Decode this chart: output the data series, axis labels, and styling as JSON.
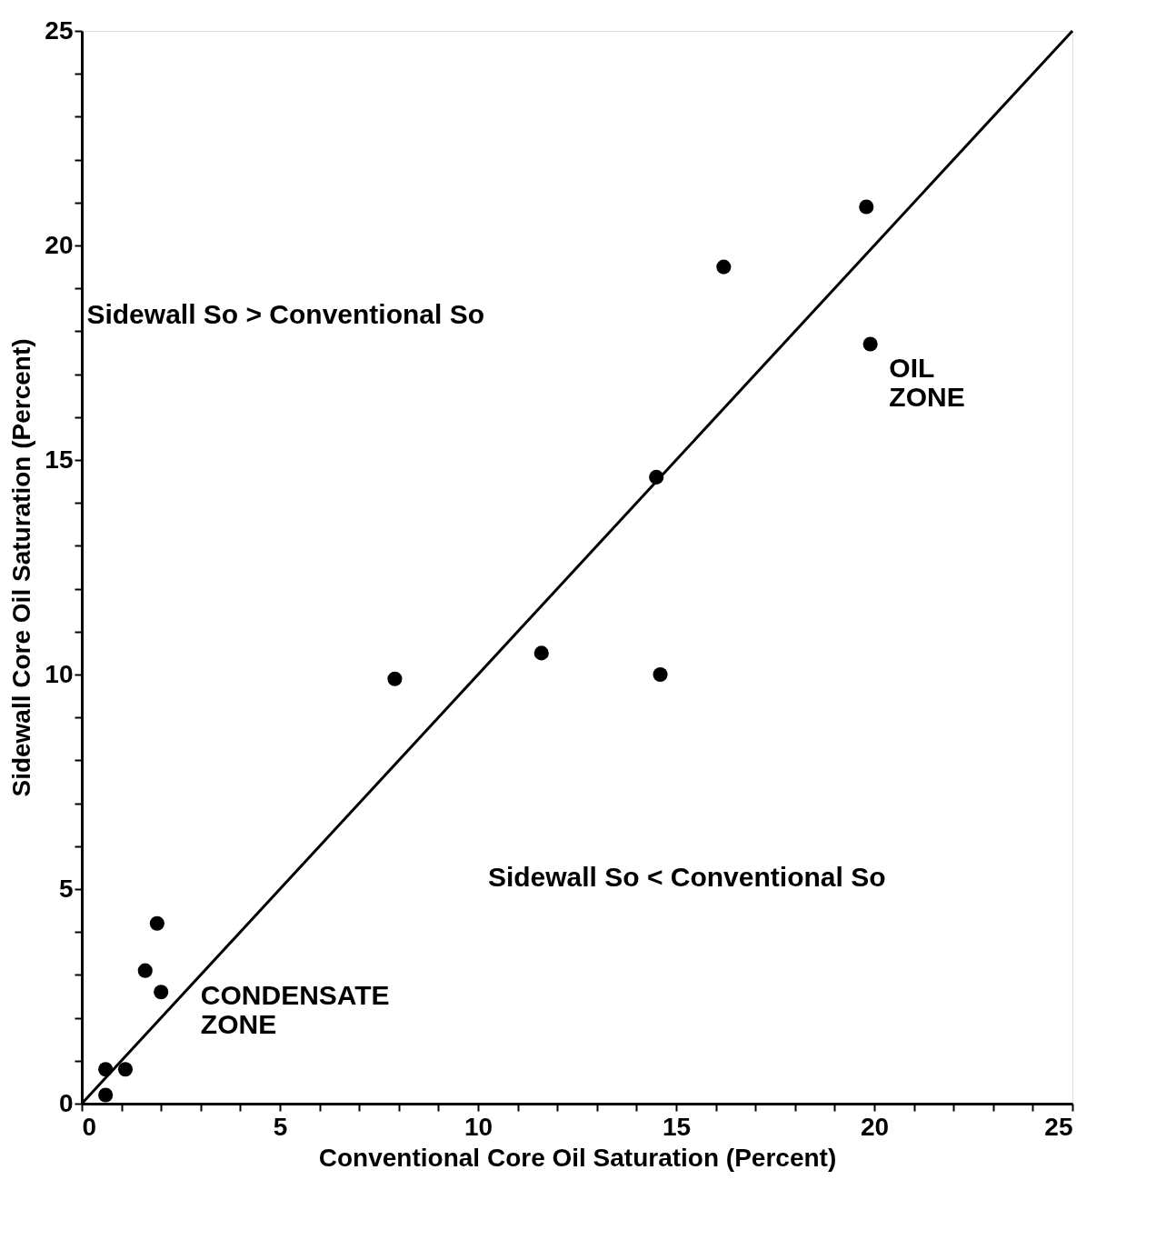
{
  "chart_data": {
    "type": "scatter",
    "xlabel": "Conventional Core Oil Saturation (Percent)",
    "ylabel": "Sidewall Core Oil Saturation (Percent)",
    "xlim": [
      0,
      25
    ],
    "ylim": [
      0,
      25
    ],
    "xticks": [
      0,
      {
        "value": 1,
        "label": null
      },
      {
        "value": 2,
        "label": null
      },
      {
        "value": 3,
        "label": null
      },
      {
        "value": 4,
        "label": null
      },
      5,
      {
        "value": 6,
        "label": null
      },
      {
        "value": 7,
        "label": null
      },
      {
        "value": 8,
        "label": null
      },
      {
        "value": 9,
        "label": null
      },
      10,
      {
        "value": 11,
        "label": null
      },
      {
        "value": 12,
        "label": null
      },
      {
        "value": 13,
        "label": null
      },
      {
        "value": 14,
        "label": null
      },
      15,
      {
        "value": 16,
        "label": null
      },
      {
        "value": 17,
        "label": null
      },
      {
        "value": 18,
        "label": null
      },
      {
        "value": 19,
        "label": null
      },
      20,
      {
        "value": 21,
        "label": null
      },
      {
        "value": 22,
        "label": null
      },
      {
        "value": 23,
        "label": null
      },
      {
        "value": 24,
        "label": null
      },
      25
    ],
    "yticks": [
      0,
      {
        "value": 1,
        "label": null
      },
      {
        "value": 2,
        "label": null
      },
      {
        "value": 3,
        "label": null
      },
      {
        "value": 4,
        "label": null
      },
      5,
      {
        "value": 6,
        "label": null
      },
      {
        "value": 7,
        "label": null
      },
      {
        "value": 8,
        "label": null
      },
      {
        "value": 9,
        "label": null
      },
      10,
      {
        "value": 11,
        "label": null
      },
      {
        "value": 12,
        "label": null
      },
      {
        "value": 13,
        "label": null
      },
      {
        "value": 14,
        "label": null
      },
      15,
      {
        "value": 16,
        "label": null
      },
      {
        "value": 17,
        "label": null
      },
      {
        "value": 18,
        "label": null
      },
      {
        "value": 19,
        "label": null
      },
      20,
      {
        "value": 21,
        "label": null
      },
      {
        "value": 22,
        "label": null
      },
      {
        "value": 23,
        "label": null
      },
      {
        "value": 24,
        "label": null
      },
      25
    ],
    "marker": "circle",
    "series": [
      {
        "type": "line",
        "marker": "none",
        "color": "#000000",
        "x": [
          0,
          25
        ],
        "values": [
          0,
          25
        ]
      },
      {
        "color": "#000000",
        "x": [
          7.9,
          11.6,
          14.6,
          14.5,
          16.2,
          19.8,
          19.9
        ],
        "values": [
          9.9,
          10.5,
          10.0,
          14.6,
          19.5,
          20.9,
          17.7
        ]
      },
      {
        "color": "#000000",
        "x": [
          1.9,
          1.6,
          2.0,
          0.6,
          1.1,
          0.6
        ],
        "values": [
          4.2,
          3.1,
          2.6,
          0.8,
          0.8,
          0.2
        ]
      }
    ],
    "annotations": [
      "Sidewall So > Conventional So",
      "Sidewall So < Conventional So",
      "OIL\nZONE",
      "CONDENSATE\nZONE"
    ]
  }
}
